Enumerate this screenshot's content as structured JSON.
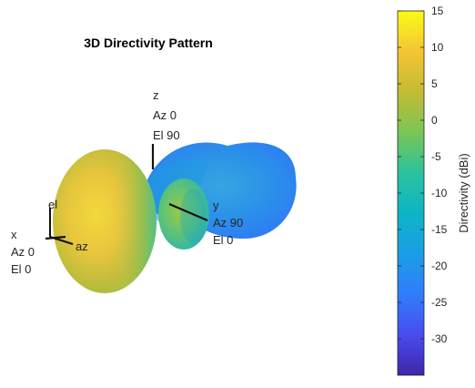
{
  "chart_data": {
    "type": "3d-radiation-pattern",
    "title": "3D Directivity Pattern",
    "colorbar": {
      "label": "Directivity (dBi)",
      "ticks": [
        15,
        10,
        5,
        0,
        -5,
        -10,
        -15,
        -20,
        -25,
        -30
      ],
      "tick_labels": [
        "15",
        "10",
        "5",
        "0",
        "-5",
        "-10",
        "-15",
        "-20",
        "-25",
        "-30"
      ],
      "range": [
        -35,
        15
      ],
      "colormap": "parula",
      "colormap_stops": [
        "#3e26a8",
        "#4a4cf0",
        "#2f7dfb",
        "#1b9ee5",
        "#0cb5c6",
        "#2bc29d",
        "#7ac556",
        "#c3bb33",
        "#f5c534",
        "#f9fb15"
      ]
    },
    "axes_triad": {
      "x": {
        "name": "x",
        "az": "Az 0",
        "el": "El 0"
      },
      "y": {
        "name": "y",
        "az": "Az 90",
        "el": "El 0"
      },
      "z": {
        "name": "z",
        "az": "Az 0",
        "el": "El 90"
      },
      "local": {
        "el": "el",
        "az": "az"
      }
    }
  }
}
